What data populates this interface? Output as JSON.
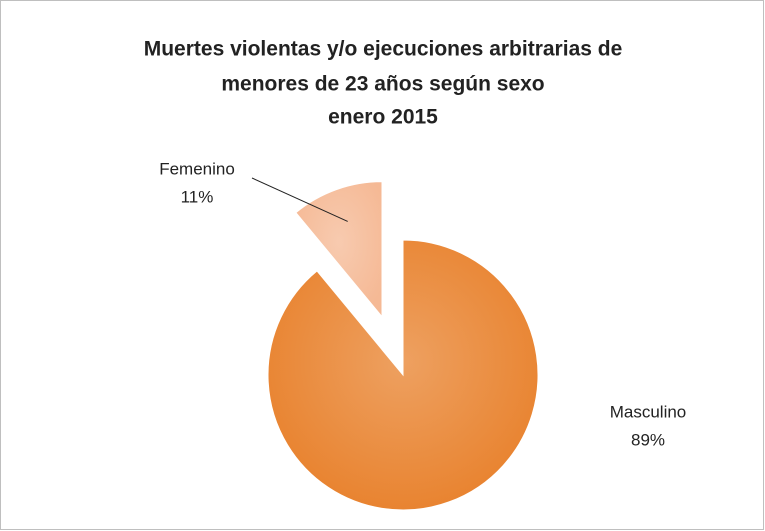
{
  "chart_data": {
    "type": "pie",
    "title": [
      "Muertes violentas y/o ejecuciones arbitrarias de",
      "menores de 23 años según sexo",
      "enero  2015"
    ],
    "categories": [
      "Masculino",
      "Femenino"
    ],
    "values": [
      89,
      11
    ],
    "value_labels": [
      "89%",
      "11%"
    ],
    "colors": [
      "#e8812c",
      "#f5b995"
    ],
    "explode": [
      false,
      true
    ]
  }
}
